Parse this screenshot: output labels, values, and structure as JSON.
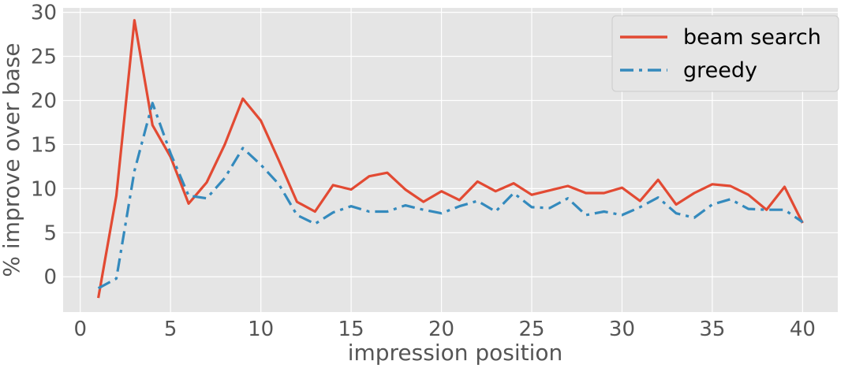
{
  "chart_data": {
    "type": "line",
    "title": "",
    "xlabel": "impression position",
    "ylabel": "% improve over base",
    "xlim": [
      -0.95,
      41.95
    ],
    "ylim": [
      -4,
      30.5
    ],
    "xticks": [
      0,
      5,
      10,
      15,
      20,
      25,
      30,
      35,
      40
    ],
    "yticks": [
      0,
      5,
      10,
      15,
      20,
      25,
      30
    ],
    "grid": true,
    "legend_position": "top-right",
    "x": [
      1,
      2,
      3,
      4,
      5,
      6,
      7,
      8,
      9,
      10,
      11,
      12,
      13,
      14,
      15,
      16,
      17,
      18,
      19,
      20,
      21,
      22,
      23,
      24,
      25,
      26,
      27,
      28,
      29,
      30,
      31,
      32,
      33,
      34,
      35,
      36,
      37,
      38,
      39,
      40
    ],
    "series": [
      {
        "name": "beam search",
        "color": "#e24a33",
        "line_style": "solid",
        "values": [
          -2.4,
          9.2,
          29.1,
          17.2,
          13.6,
          8.3,
          10.7,
          15.0,
          20.2,
          17.7,
          13.2,
          8.5,
          7.4,
          10.4,
          9.9,
          11.4,
          11.8,
          9.9,
          8.5,
          9.7,
          8.7,
          10.8,
          9.7,
          10.6,
          9.3,
          9.8,
          10.3,
          9.5,
          9.5,
          10.1,
          8.6,
          11.0,
          8.2,
          9.5,
          10.5,
          10.3,
          9.3,
          7.6,
          10.2,
          6.1
        ]
      },
      {
        "name": "greedy",
        "color": "#348abd",
        "line_style": "dashdot",
        "values": [
          -1.3,
          -0.2,
          12.0,
          19.7,
          14.0,
          9.2,
          8.9,
          11.2,
          14.6,
          12.7,
          10.5,
          7.0,
          6.0,
          7.3,
          8.0,
          7.4,
          7.4,
          8.1,
          7.6,
          7.2,
          8.0,
          8.6,
          7.4,
          9.5,
          7.9,
          7.8,
          8.9,
          7.0,
          7.4,
          7.0,
          7.9,
          9.0,
          7.2,
          6.7,
          8.2,
          8.8,
          7.7,
          7.6,
          7.6,
          6.2
        ]
      }
    ]
  }
}
